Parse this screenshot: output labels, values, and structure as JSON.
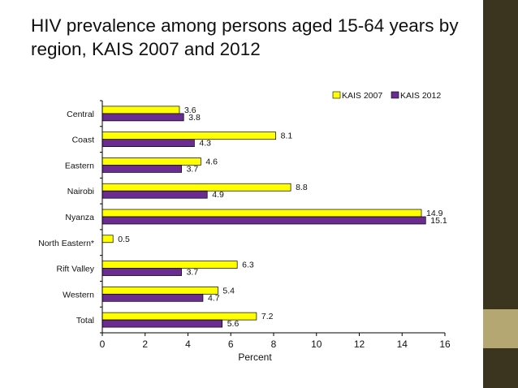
{
  "slide": {
    "title": "HIV prevalence among persons aged 15-64 years by region, KAIS 2007 and 2012"
  },
  "theme": {
    "sidebar_dark": "#3b3520",
    "sidebar_accent": "#b5a772",
    "series_2007_color": "#ffff00",
    "series_2012_color": "#6a2c91"
  },
  "chart_data": {
    "type": "bar",
    "orientation": "horizontal",
    "categories": [
      "Central",
      "Coast",
      "Eastern",
      "Nairobi",
      "Nyanza",
      "North Eastern*",
      "Rift Valley",
      "Western",
      "Total"
    ],
    "series": [
      {
        "name": "KAIS 2007",
        "color": "#ffff00",
        "values": [
          3.6,
          8.1,
          4.6,
          8.8,
          14.9,
          0.5,
          6.3,
          5.4,
          7.2
        ]
      },
      {
        "name": "KAIS 2012",
        "color": "#6a2c91",
        "values": [
          3.8,
          4.3,
          3.7,
          4.9,
          15.1,
          null,
          3.7,
          4.7,
          5.6
        ]
      }
    ],
    "value_labels": [
      [
        "3.6",
        "8.1",
        "4.6",
        "8.8",
        "14.9",
        "0.5",
        "6.3",
        "5.4",
        "7.2"
      ],
      [
        "3.8",
        "4.3",
        "3.7",
        "4.9",
        "15.1",
        "",
        "3.7",
        "4.7",
        "5.6"
      ]
    ],
    "xlabel": "Percent",
    "ylabel": "",
    "xlim": [
      0,
      16
    ],
    "xticks": [
      "0",
      "2",
      "4",
      "6",
      "8",
      "10",
      "12",
      "14",
      "16"
    ],
    "legend_position": "top-right",
    "grid": false
  }
}
